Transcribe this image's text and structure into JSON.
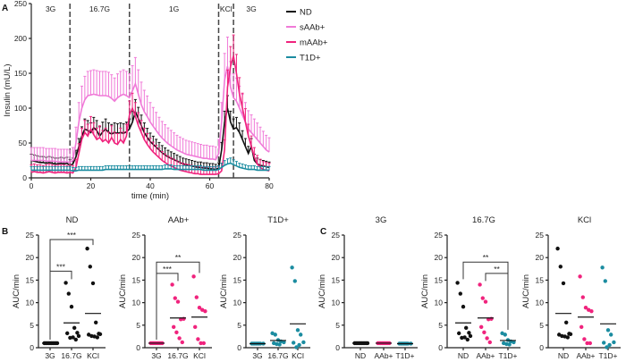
{
  "colors": {
    "ND": "#111111",
    "sAAb+": "#f07ad8",
    "mAAb+": "#f0237d",
    "T1D+": "#1b8ca0",
    "AAb+": "#f0237d"
  },
  "chart_data": [
    {
      "panel": "A",
      "type": "line",
      "xlabel": "time (min)",
      "ylabel": "Insulin (mU/L)",
      "xlim": [
        0,
        80
      ],
      "ylim": [
        0,
        250
      ],
      "xticks": [
        "0",
        "20",
        "40",
        "60",
        "80"
      ],
      "yticks": [
        "0",
        "50",
        "100",
        "150",
        "200",
        "250"
      ],
      "phase_boundaries": [
        13,
        33,
        63,
        68
      ],
      "phase_labels": [
        "3G",
        "16.7G",
        "1G",
        "KCl",
        "3G"
      ],
      "legend": [
        "ND",
        "sAAb+",
        "mAAb+",
        "T1D+"
      ],
      "legend_position": "top-right",
      "x_start": 0,
      "x_step": 1,
      "series": [
        {
          "name": "ND",
          "err": 12,
          "values": [
            25,
            24,
            23,
            22,
            22,
            21,
            22,
            21,
            20,
            20,
            21,
            20,
            21,
            18,
            20,
            30,
            45,
            60,
            70,
            68,
            65,
            72,
            68,
            60,
            66,
            70,
            65,
            63,
            65,
            64,
            65,
            64,
            66,
            70,
            80,
            95,
            85,
            75,
            65,
            58,
            52,
            48,
            44,
            40,
            36,
            33,
            30,
            28,
            26,
            24,
            22,
            20,
            19,
            18,
            17,
            16,
            15,
            15,
            14,
            14,
            13,
            13,
            12,
            14,
            40,
            80,
            100,
            80,
            70,
            72,
            65,
            55,
            45,
            35,
            45,
            25,
            20,
            18,
            17,
            16,
            15
          ]
        },
        {
          "name": "sAAb+",
          "err": 28,
          "values": [
            25,
            25,
            25,
            25,
            25,
            24,
            24,
            24,
            24,
            23,
            23,
            23,
            23,
            22,
            25,
            50,
            80,
            100,
            112,
            118,
            119,
            120,
            119,
            118,
            118,
            118,
            117,
            114,
            110,
            115,
            118,
            120,
            118,
            115,
            125,
            135,
            120,
            105,
            95,
            88,
            80,
            74,
            68,
            62,
            57,
            53,
            49,
            46,
            43,
            40,
            38,
            36,
            34,
            33,
            32,
            31,
            30,
            29,
            28,
            28,
            27,
            27,
            26,
            35,
            80,
            140,
            160,
            130,
            115,
            110,
            100,
            90,
            80,
            70,
            65,
            60,
            55,
            50,
            45,
            40,
            37
          ]
        },
        {
          "name": "mAAb+",
          "err": 20,
          "values": [
            8,
            9,
            8,
            8,
            7,
            8,
            9,
            8,
            7,
            8,
            8,
            8,
            7,
            8,
            7,
            15,
            35,
            55,
            65,
            60,
            70,
            62,
            55,
            58,
            52,
            55,
            50,
            58,
            50,
            48,
            55,
            50,
            60,
            90,
            100,
            88,
            75,
            65,
            55,
            48,
            42,
            37,
            33,
            29,
            25,
            22,
            19,
            17,
            15,
            13,
            11,
            10,
            9,
            8,
            7,
            6,
            6,
            5,
            5,
            5,
            5,
            5,
            5,
            6,
            10,
            40,
            130,
            160,
            175,
            150,
            120,
            100,
            80,
            60,
            45,
            30,
            20,
            15,
            12,
            11,
            10
          ]
        },
        {
          "name": "T1D+",
          "err": 5,
          "values": [
            11,
            11,
            11,
            11,
            11,
            11,
            11,
            11,
            11,
            11,
            11,
            11,
            11,
            11,
            10,
            10,
            11,
            11,
            11,
            11,
            11,
            11,
            11,
            11,
            11,
            12,
            12,
            12,
            12,
            12,
            12,
            12,
            12,
            12,
            12,
            12,
            12,
            12,
            12,
            12,
            12,
            12,
            12,
            12,
            12,
            13,
            13,
            13,
            12,
            12,
            12,
            12,
            12,
            12,
            12,
            12,
            12,
            12,
            11,
            11,
            11,
            11,
            11,
            12,
            15,
            18,
            20,
            21,
            19,
            17,
            15,
            14,
            13,
            12,
            12,
            12,
            11,
            11,
            11,
            11,
            11
          ]
        }
      ]
    },
    {
      "panel": "B",
      "type": "scatter",
      "ylabel": "AUC/min",
      "ylim": [
        0,
        25
      ],
      "yticks": [
        "0",
        "5",
        "10",
        "15",
        "20",
        "25"
      ],
      "subplots": [
        {
          "title": "ND",
          "color_key": "ND",
          "categories": [
            "3G",
            "16.7G",
            "KCl"
          ],
          "values": [
            [
              1,
              1,
              1,
              1,
              1,
              1,
              1,
              1,
              1,
              1
            ],
            [
              14.4,
              12,
              9.1,
              4.4,
              3.3,
              3.2,
              2.2,
              2.3,
              1.8,
              2.6
            ],
            [
              22,
              18,
              14.3,
              5.6,
              3.1,
              2.9,
              2.6,
              2.5,
              2.3,
              3.0
            ]
          ],
          "means": [
            1,
            5.5,
            7.6
          ],
          "significance": [
            {
              "from": 0,
              "to": 1,
              "label": "***",
              "level": 17
            },
            {
              "from": 0,
              "to": 2,
              "label": "***",
              "level": 24
            }
          ]
        },
        {
          "title": "AAb+",
          "color_key": "AAb+",
          "categories": [
            "3G",
            "16.7G",
            "KCl"
          ],
          "values": [
            [
              1,
              1,
              1,
              1,
              1,
              1,
              1,
              1,
              1
            ],
            [
              14,
              11,
              10.2,
              6.3,
              6.4,
              4.6,
              3.4,
              2.1,
              1.2
            ],
            [
              15.8,
              11.2,
              8.9,
              8.4,
              8.1,
              4.6,
              1.9,
              1.0,
              1.0
            ]
          ],
          "means": [
            1,
            6.6,
            6.8
          ],
          "significance": [
            {
              "from": 0,
              "to": 1,
              "label": "***",
              "level": 16.5
            },
            {
              "from": 0,
              "to": 2,
              "label": "**",
              "level": 19
            }
          ]
        },
        {
          "title": "T1D+",
          "color_key": "T1D+",
          "categories": [
            "3G",
            "16.7G",
            "KCl"
          ],
          "values": [
            [
              0.9,
              0.9,
              0.9,
              0.9,
              0.9,
              0.9,
              0.9,
              0.9
            ],
            [
              3.2,
              2.9,
              1.7,
              1.4,
              1.2,
              1.0,
              0.8,
              0.7
            ],
            [
              17.8,
              14.8,
              3.9,
              2.9,
              1.2,
              1.1,
              0.1,
              0.6
            ]
          ],
          "means": [
            0.9,
            1.6,
            5.3
          ],
          "significance": []
        }
      ]
    },
    {
      "panel": "C",
      "type": "scatter",
      "ylabel": "AUC/min",
      "ylim": [
        0,
        25
      ],
      "yticks": [
        "0",
        "5",
        "10",
        "15",
        "20",
        "25"
      ],
      "subplots": [
        {
          "title": "3G",
          "categories": [
            "ND",
            "AAb+",
            "T1D+"
          ],
          "color_keys": [
            "ND",
            "AAb+",
            "T1D+"
          ],
          "values": [
            [
              1,
              1,
              1,
              1,
              1,
              1,
              1,
              1,
              1,
              1
            ],
            [
              1,
              1,
              1,
              1,
              1,
              1,
              1,
              1,
              1
            ],
            [
              0.9,
              0.9,
              0.9,
              0.9,
              0.9,
              0.9,
              0.9,
              0.9
            ]
          ],
          "means": [
            1,
            1,
            0.9
          ],
          "significance": []
        },
        {
          "title": "16.7G",
          "categories": [
            "ND",
            "AAb+",
            "T1D+"
          ],
          "color_keys": [
            "ND",
            "AAb+",
            "T1D+"
          ],
          "values": [
            [
              14.4,
              12,
              9.1,
              4.4,
              3.3,
              3.2,
              2.2,
              2.3,
              1.8,
              2.6
            ],
            [
              14,
              11,
              10.2,
              6.3,
              6.4,
              4.6,
              3.4,
              2.1,
              1.2
            ],
            [
              3.2,
              2.9,
              1.7,
              1.4,
              1.2,
              1.0,
              0.8,
              0.7
            ]
          ],
          "means": [
            5.5,
            6.6,
            1.6
          ],
          "significance": [
            {
              "from": 0,
              "to": 2,
              "label": "**",
              "level": 19
            },
            {
              "from": 1,
              "to": 2,
              "label": "**",
              "level": 16.5
            }
          ]
        },
        {
          "title": "KCl",
          "categories": [
            "ND",
            "AAb+",
            "T1D+"
          ],
          "color_keys": [
            "ND",
            "AAb+",
            "T1D+"
          ],
          "values": [
            [
              22,
              18,
              14.3,
              5.6,
              3.1,
              2.9,
              2.6,
              2.5,
              2.3,
              3.0
            ],
            [
              15.8,
              11.2,
              8.9,
              8.4,
              8.1,
              4.6,
              1.9,
              1.0,
              1.0
            ],
            [
              17.8,
              14.8,
              3.9,
              2.9,
              1.2,
              1.1,
              0.1,
              0.6
            ]
          ],
          "means": [
            7.6,
            6.8,
            5.3
          ],
          "significance": []
        }
      ]
    }
  ]
}
